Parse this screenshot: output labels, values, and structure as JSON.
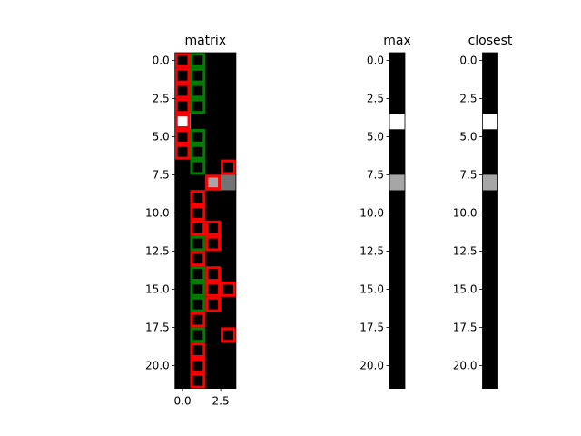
{
  "chart_data": [
    {
      "type": "heatmap",
      "title": "matrix",
      "rows": 22,
      "cols": 4,
      "xlim": [
        -0.5,
        3.5
      ],
      "ylim": [
        21.5,
        -0.5
      ],
      "xticks": [
        0.0,
        2.5
      ],
      "yticks": [
        0.0,
        2.5,
        5.0,
        7.5,
        10.0,
        12.5,
        15.0,
        17.5,
        20.0
      ],
      "cells": [
        {
          "row": 4,
          "col": 0,
          "value": 1.0
        },
        {
          "row": 8,
          "col": 2,
          "value": 0.65
        },
        {
          "row": 8,
          "col": 3,
          "value": 0.45
        }
      ],
      "red_boxes": [
        [
          0,
          0
        ],
        [
          1,
          0
        ],
        [
          2,
          0
        ],
        [
          3,
          0
        ],
        [
          4,
          0
        ],
        [
          5,
          0
        ],
        [
          6,
          0
        ],
        [
          7,
          3
        ],
        [
          8,
          2
        ],
        [
          9,
          1
        ],
        [
          10,
          1
        ],
        [
          11,
          1
        ],
        [
          11,
          2
        ],
        [
          12,
          2
        ],
        [
          13,
          1
        ],
        [
          14,
          2
        ],
        [
          15,
          2
        ],
        [
          15,
          3
        ],
        [
          16,
          2
        ],
        [
          17,
          1
        ],
        [
          18,
          3
        ],
        [
          19,
          1
        ],
        [
          20,
          1
        ],
        [
          21,
          1
        ]
      ],
      "green_boxes": [
        [
          0,
          1
        ],
        [
          1,
          1
        ],
        [
          2,
          1
        ],
        [
          3,
          1
        ],
        [
          5,
          1
        ],
        [
          6,
          1
        ],
        [
          7,
          1
        ],
        [
          11,
          1
        ],
        [
          12,
          1
        ],
        [
          14,
          1
        ],
        [
          15,
          1
        ],
        [
          16,
          1
        ],
        [
          18,
          1
        ]
      ]
    },
    {
      "type": "heatmap",
      "title": "max",
      "rows": 22,
      "cols": 1,
      "ylim": [
        21.5,
        -0.5
      ],
      "yticks": [
        0.0,
        2.5,
        5.0,
        7.5,
        10.0,
        12.5,
        15.0,
        17.5,
        20.0
      ],
      "cells": [
        {
          "row": 4,
          "col": 0,
          "value": 1.0
        },
        {
          "row": 8,
          "col": 0,
          "value": 0.65
        }
      ]
    },
    {
      "type": "heatmap",
      "title": "closest",
      "rows": 22,
      "cols": 1,
      "ylim": [
        21.5,
        -0.5
      ],
      "yticks": [
        0.0,
        2.5,
        5.0,
        7.5,
        10.0,
        12.5,
        15.0,
        17.5,
        20.0
      ],
      "cells": [
        {
          "row": 4,
          "col": 0,
          "value": 1.0
        },
        {
          "row": 8,
          "col": 0,
          "value": 0.65
        }
      ]
    }
  ],
  "colors": {
    "background": "#000000",
    "red_box": "#ff0000",
    "green_box": "#008000",
    "axis": "#000000"
  }
}
